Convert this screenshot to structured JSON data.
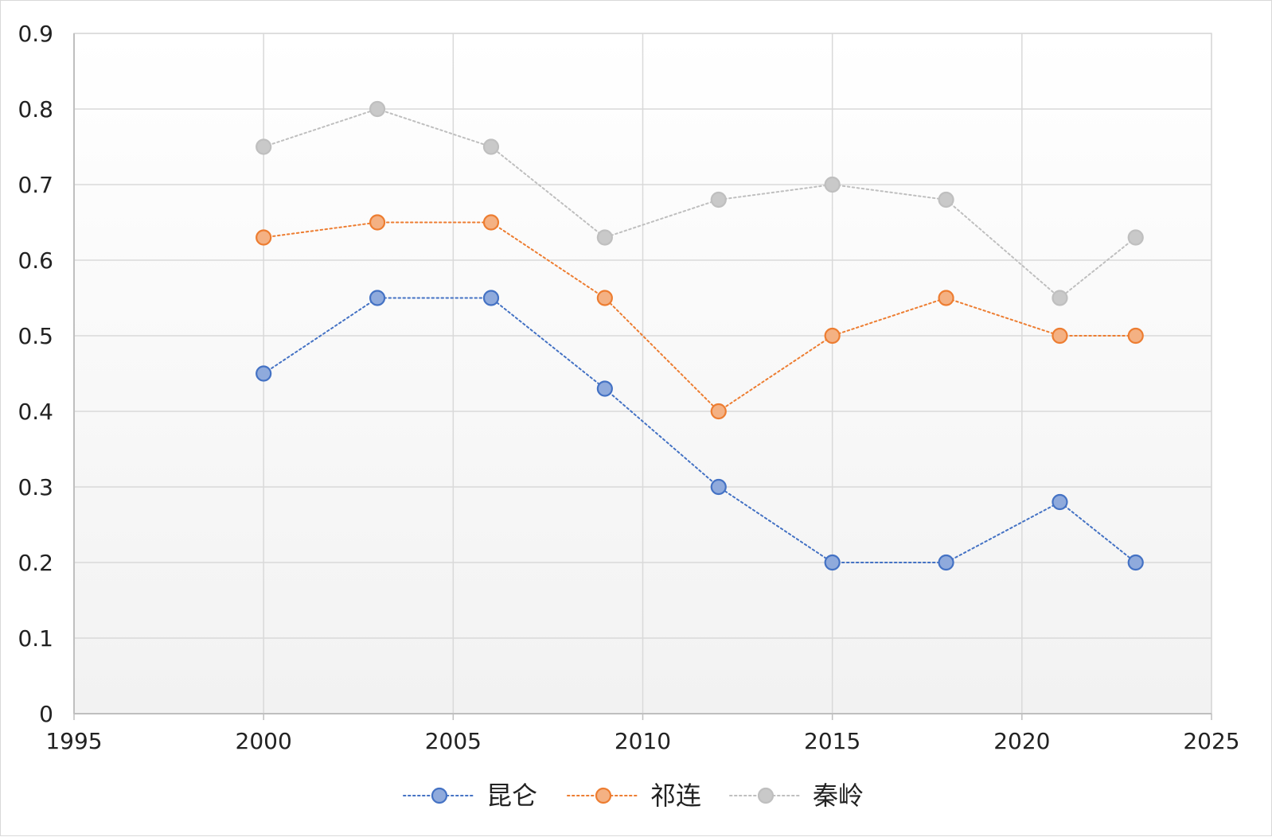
{
  "chart_data": {
    "type": "scatter",
    "title": "",
    "xlabel": "",
    "ylabel": "",
    "xlim": [
      1995,
      2025
    ],
    "ylim": [
      0,
      0.9
    ],
    "x_ticks": [
      "1995",
      "2000",
      "2005",
      "2010",
      "2015",
      "2020",
      "2025"
    ],
    "y_ticks": [
      "0",
      "0.1",
      "0.2",
      "0.3",
      "0.4",
      "0.5",
      "0.6",
      "0.7",
      "0.8",
      "0.9"
    ],
    "grid": true,
    "legend_position": "bottom",
    "line_style": "dotted",
    "series": [
      {
        "name": "昆仑",
        "color": "#4472c4",
        "fill": "#8faadc",
        "points": [
          {
            "x": 2000,
            "y": 0.45
          },
          {
            "x": 2003,
            "y": 0.55
          },
          {
            "x": 2006,
            "y": 0.55
          },
          {
            "x": 2009,
            "y": 0.43
          },
          {
            "x": 2012,
            "y": 0.3
          },
          {
            "x": 2015,
            "y": 0.2
          },
          {
            "x": 2018,
            "y": 0.2
          },
          {
            "x": 2021,
            "y": 0.28
          },
          {
            "x": 2023,
            "y": 0.2
          }
        ]
      },
      {
        "name": "祁连",
        "color": "#ed7d31",
        "fill": "#f4b183",
        "points": [
          {
            "x": 2000,
            "y": 0.63
          },
          {
            "x": 2003,
            "y": 0.65
          },
          {
            "x": 2006,
            "y": 0.65
          },
          {
            "x": 2009,
            "y": 0.55
          },
          {
            "x": 2012,
            "y": 0.4
          },
          {
            "x": 2015,
            "y": 0.5
          },
          {
            "x": 2018,
            "y": 0.55
          },
          {
            "x": 2021,
            "y": 0.5
          },
          {
            "x": 2023,
            "y": 0.5
          }
        ]
      },
      {
        "name": "秦岭",
        "color": "#bfbfbf",
        "fill": "#c9c9c9",
        "points": [
          {
            "x": 2000,
            "y": 0.75
          },
          {
            "x": 2003,
            "y": 0.8
          },
          {
            "x": 2006,
            "y": 0.75
          },
          {
            "x": 2009,
            "y": 0.63
          },
          {
            "x": 2012,
            "y": 0.68
          },
          {
            "x": 2015,
            "y": 0.7
          },
          {
            "x": 2018,
            "y": 0.68
          },
          {
            "x": 2021,
            "y": 0.55
          },
          {
            "x": 2023,
            "y": 0.63
          }
        ]
      }
    ]
  }
}
